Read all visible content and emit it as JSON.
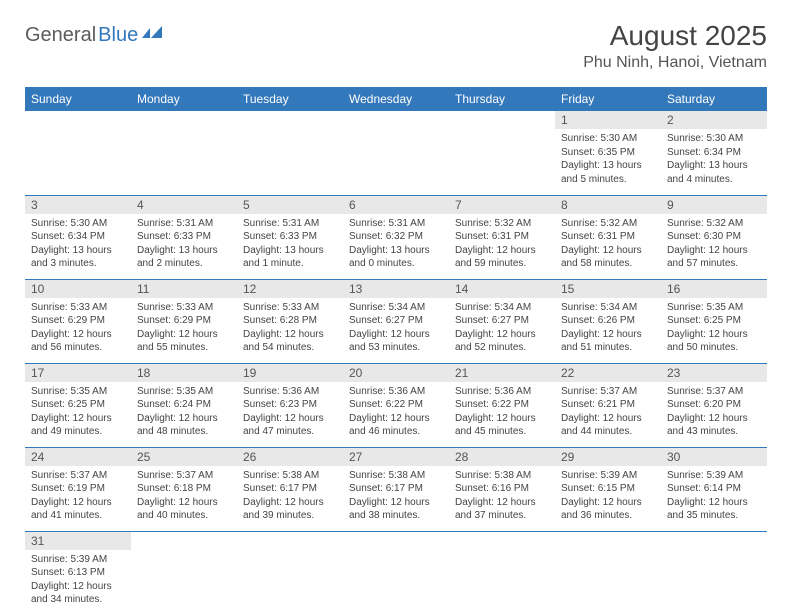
{
  "logo": {
    "general": "General",
    "blue": "Blue"
  },
  "header": {
    "title": "August 2025",
    "location": "Phu Ninh, Hanoi, Vietnam"
  },
  "colors": {
    "header_bg": "#3478bc",
    "header_text": "#ffffff",
    "daynum_bg": "#e8e8e8",
    "row_border": "#3478bc",
    "text": "#444444"
  },
  "daysOfWeek": [
    "Sunday",
    "Monday",
    "Tuesday",
    "Wednesday",
    "Thursday",
    "Friday",
    "Saturday"
  ],
  "weeks": [
    [
      null,
      null,
      null,
      null,
      null,
      {
        "n": "1",
        "sunrise": "Sunrise: 5:30 AM",
        "sunset": "Sunset: 6:35 PM",
        "daylight": "Daylight: 13 hours and 5 minutes."
      },
      {
        "n": "2",
        "sunrise": "Sunrise: 5:30 AM",
        "sunset": "Sunset: 6:34 PM",
        "daylight": "Daylight: 13 hours and 4 minutes."
      }
    ],
    [
      {
        "n": "3",
        "sunrise": "Sunrise: 5:30 AM",
        "sunset": "Sunset: 6:34 PM",
        "daylight": "Daylight: 13 hours and 3 minutes."
      },
      {
        "n": "4",
        "sunrise": "Sunrise: 5:31 AM",
        "sunset": "Sunset: 6:33 PM",
        "daylight": "Daylight: 13 hours and 2 minutes."
      },
      {
        "n": "5",
        "sunrise": "Sunrise: 5:31 AM",
        "sunset": "Sunset: 6:33 PM",
        "daylight": "Daylight: 13 hours and 1 minute."
      },
      {
        "n": "6",
        "sunrise": "Sunrise: 5:31 AM",
        "sunset": "Sunset: 6:32 PM",
        "daylight": "Daylight: 13 hours and 0 minutes."
      },
      {
        "n": "7",
        "sunrise": "Sunrise: 5:32 AM",
        "sunset": "Sunset: 6:31 PM",
        "daylight": "Daylight: 12 hours and 59 minutes."
      },
      {
        "n": "8",
        "sunrise": "Sunrise: 5:32 AM",
        "sunset": "Sunset: 6:31 PM",
        "daylight": "Daylight: 12 hours and 58 minutes."
      },
      {
        "n": "9",
        "sunrise": "Sunrise: 5:32 AM",
        "sunset": "Sunset: 6:30 PM",
        "daylight": "Daylight: 12 hours and 57 minutes."
      }
    ],
    [
      {
        "n": "10",
        "sunrise": "Sunrise: 5:33 AM",
        "sunset": "Sunset: 6:29 PM",
        "daylight": "Daylight: 12 hours and 56 minutes."
      },
      {
        "n": "11",
        "sunrise": "Sunrise: 5:33 AM",
        "sunset": "Sunset: 6:29 PM",
        "daylight": "Daylight: 12 hours and 55 minutes."
      },
      {
        "n": "12",
        "sunrise": "Sunrise: 5:33 AM",
        "sunset": "Sunset: 6:28 PM",
        "daylight": "Daylight: 12 hours and 54 minutes."
      },
      {
        "n": "13",
        "sunrise": "Sunrise: 5:34 AM",
        "sunset": "Sunset: 6:27 PM",
        "daylight": "Daylight: 12 hours and 53 minutes."
      },
      {
        "n": "14",
        "sunrise": "Sunrise: 5:34 AM",
        "sunset": "Sunset: 6:27 PM",
        "daylight": "Daylight: 12 hours and 52 minutes."
      },
      {
        "n": "15",
        "sunrise": "Sunrise: 5:34 AM",
        "sunset": "Sunset: 6:26 PM",
        "daylight": "Daylight: 12 hours and 51 minutes."
      },
      {
        "n": "16",
        "sunrise": "Sunrise: 5:35 AM",
        "sunset": "Sunset: 6:25 PM",
        "daylight": "Daylight: 12 hours and 50 minutes."
      }
    ],
    [
      {
        "n": "17",
        "sunrise": "Sunrise: 5:35 AM",
        "sunset": "Sunset: 6:25 PM",
        "daylight": "Daylight: 12 hours and 49 minutes."
      },
      {
        "n": "18",
        "sunrise": "Sunrise: 5:35 AM",
        "sunset": "Sunset: 6:24 PM",
        "daylight": "Daylight: 12 hours and 48 minutes."
      },
      {
        "n": "19",
        "sunrise": "Sunrise: 5:36 AM",
        "sunset": "Sunset: 6:23 PM",
        "daylight": "Daylight: 12 hours and 47 minutes."
      },
      {
        "n": "20",
        "sunrise": "Sunrise: 5:36 AM",
        "sunset": "Sunset: 6:22 PM",
        "daylight": "Daylight: 12 hours and 46 minutes."
      },
      {
        "n": "21",
        "sunrise": "Sunrise: 5:36 AM",
        "sunset": "Sunset: 6:22 PM",
        "daylight": "Daylight: 12 hours and 45 minutes."
      },
      {
        "n": "22",
        "sunrise": "Sunrise: 5:37 AM",
        "sunset": "Sunset: 6:21 PM",
        "daylight": "Daylight: 12 hours and 44 minutes."
      },
      {
        "n": "23",
        "sunrise": "Sunrise: 5:37 AM",
        "sunset": "Sunset: 6:20 PM",
        "daylight": "Daylight: 12 hours and 43 minutes."
      }
    ],
    [
      {
        "n": "24",
        "sunrise": "Sunrise: 5:37 AM",
        "sunset": "Sunset: 6:19 PM",
        "daylight": "Daylight: 12 hours and 41 minutes."
      },
      {
        "n": "25",
        "sunrise": "Sunrise: 5:37 AM",
        "sunset": "Sunset: 6:18 PM",
        "daylight": "Daylight: 12 hours and 40 minutes."
      },
      {
        "n": "26",
        "sunrise": "Sunrise: 5:38 AM",
        "sunset": "Sunset: 6:17 PM",
        "daylight": "Daylight: 12 hours and 39 minutes."
      },
      {
        "n": "27",
        "sunrise": "Sunrise: 5:38 AM",
        "sunset": "Sunset: 6:17 PM",
        "daylight": "Daylight: 12 hours and 38 minutes."
      },
      {
        "n": "28",
        "sunrise": "Sunrise: 5:38 AM",
        "sunset": "Sunset: 6:16 PM",
        "daylight": "Daylight: 12 hours and 37 minutes."
      },
      {
        "n": "29",
        "sunrise": "Sunrise: 5:39 AM",
        "sunset": "Sunset: 6:15 PM",
        "daylight": "Daylight: 12 hours and 36 minutes."
      },
      {
        "n": "30",
        "sunrise": "Sunrise: 5:39 AM",
        "sunset": "Sunset: 6:14 PM",
        "daylight": "Daylight: 12 hours and 35 minutes."
      }
    ],
    [
      {
        "n": "31",
        "sunrise": "Sunrise: 5:39 AM",
        "sunset": "Sunset: 6:13 PM",
        "daylight": "Daylight: 12 hours and 34 minutes."
      },
      null,
      null,
      null,
      null,
      null,
      null
    ]
  ]
}
